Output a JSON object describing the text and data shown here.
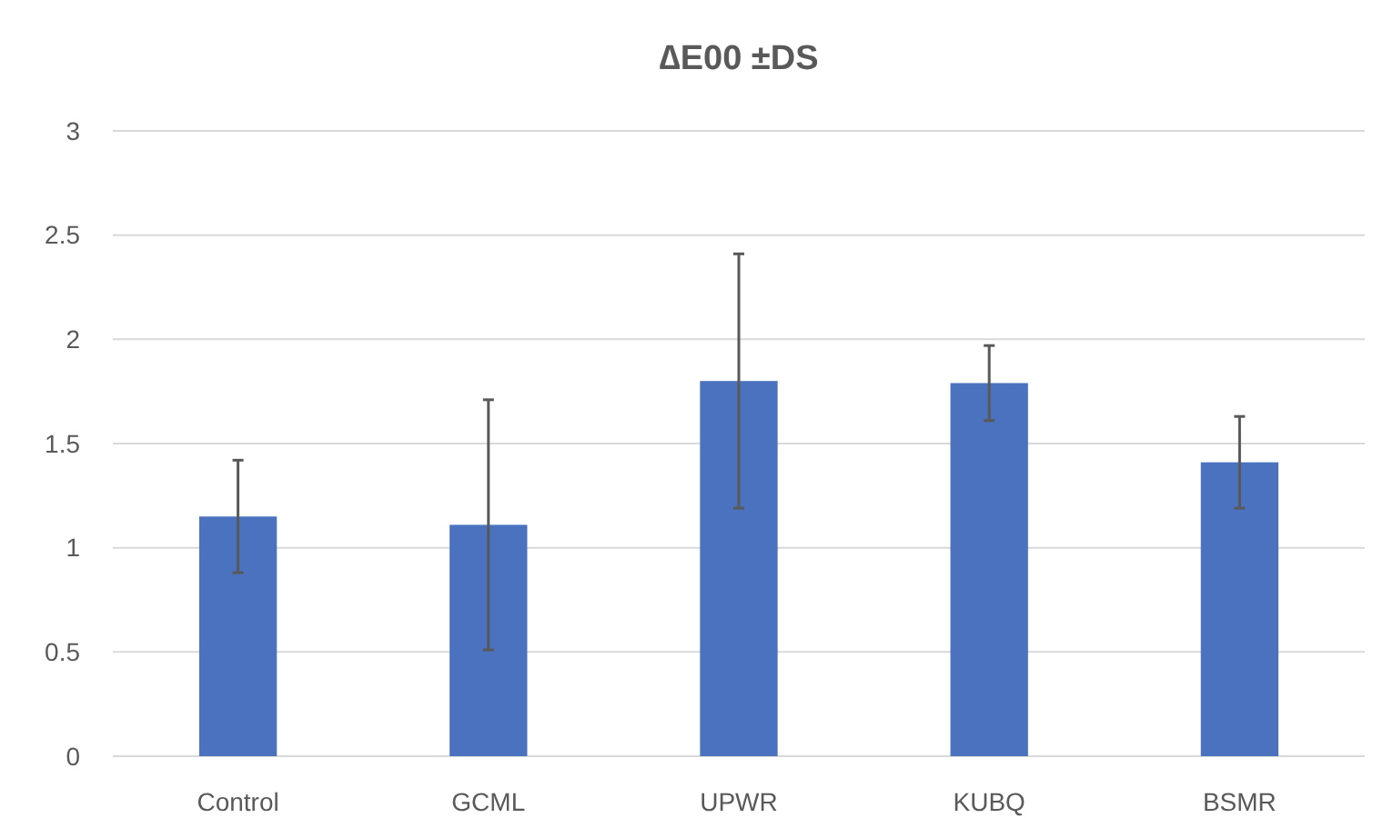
{
  "chart_data": {
    "type": "bar",
    "title": "∆E00 ±DS",
    "categories": [
      "Control",
      "GCML",
      "UPWR",
      "KUBQ",
      "BSMR"
    ],
    "series": [
      {
        "color": "#4a72bf",
        "values": [
          1.15,
          1.11,
          1.8,
          1.79,
          1.41
        ],
        "errors": [
          0.27,
          0.6,
          0.61,
          0.18,
          0.22
        ]
      }
    ],
    "ylim": [
      0,
      3
    ],
    "yticks": [
      0,
      0.5,
      1,
      1.5,
      2,
      2.5,
      3
    ],
    "grid": "y"
  }
}
